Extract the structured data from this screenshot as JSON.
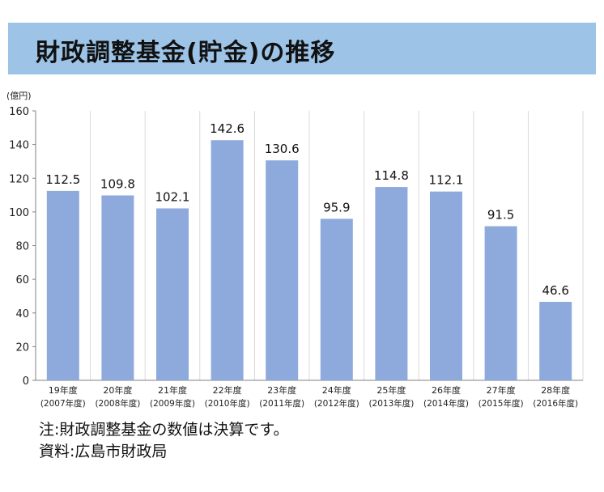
{
  "chart_data": {
    "type": "bar",
    "title": "財政調整基金(貯金)の推移",
    "ylabel": "(億円)",
    "xlabel": "",
    "ylim": [
      0,
      160
    ],
    "yticks": [
      "0",
      "20",
      "40",
      "60",
      "80",
      "100",
      "120",
      "140",
      "160"
    ],
    "grid": "vertical",
    "categories": [
      {
        "line1": "19年度",
        "line2": "(2007年度)"
      },
      {
        "line1": "20年度",
        "line2": "(2008年度)"
      },
      {
        "line1": "21年度",
        "line2": "(2009年度)"
      },
      {
        "line1": "22年度",
        "line2": "(2010年度)"
      },
      {
        "line1": "23年度",
        "line2": "(2011年度)"
      },
      {
        "line1": "24年度",
        "line2": "(2012年度)"
      },
      {
        "line1": "25年度",
        "line2": "(2013年度)"
      },
      {
        "line1": "26年度",
        "line2": "(2014年度)"
      },
      {
        "line1": "27年度",
        "line2": "(2015年度)"
      },
      {
        "line1": "28年度",
        "line2": "(2016年度)"
      }
    ],
    "values": [
      112.5,
      109.8,
      102.1,
      142.6,
      130.6,
      95.9,
      114.8,
      112.1,
      91.5,
      46.6
    ],
    "value_labels": [
      "112.5",
      "109.8",
      "102.1",
      "142.6",
      "130.6",
      "95.9",
      "114.8",
      "112.1",
      "91.5",
      "46.6"
    ],
    "colors": {
      "bar": "#8eaadc",
      "grid": "#d9d9d9",
      "axis": "#808080"
    }
  },
  "notes": {
    "note": "注:財政調整基金の数値は決算です。",
    "source": "資料:広島市財政局"
  }
}
